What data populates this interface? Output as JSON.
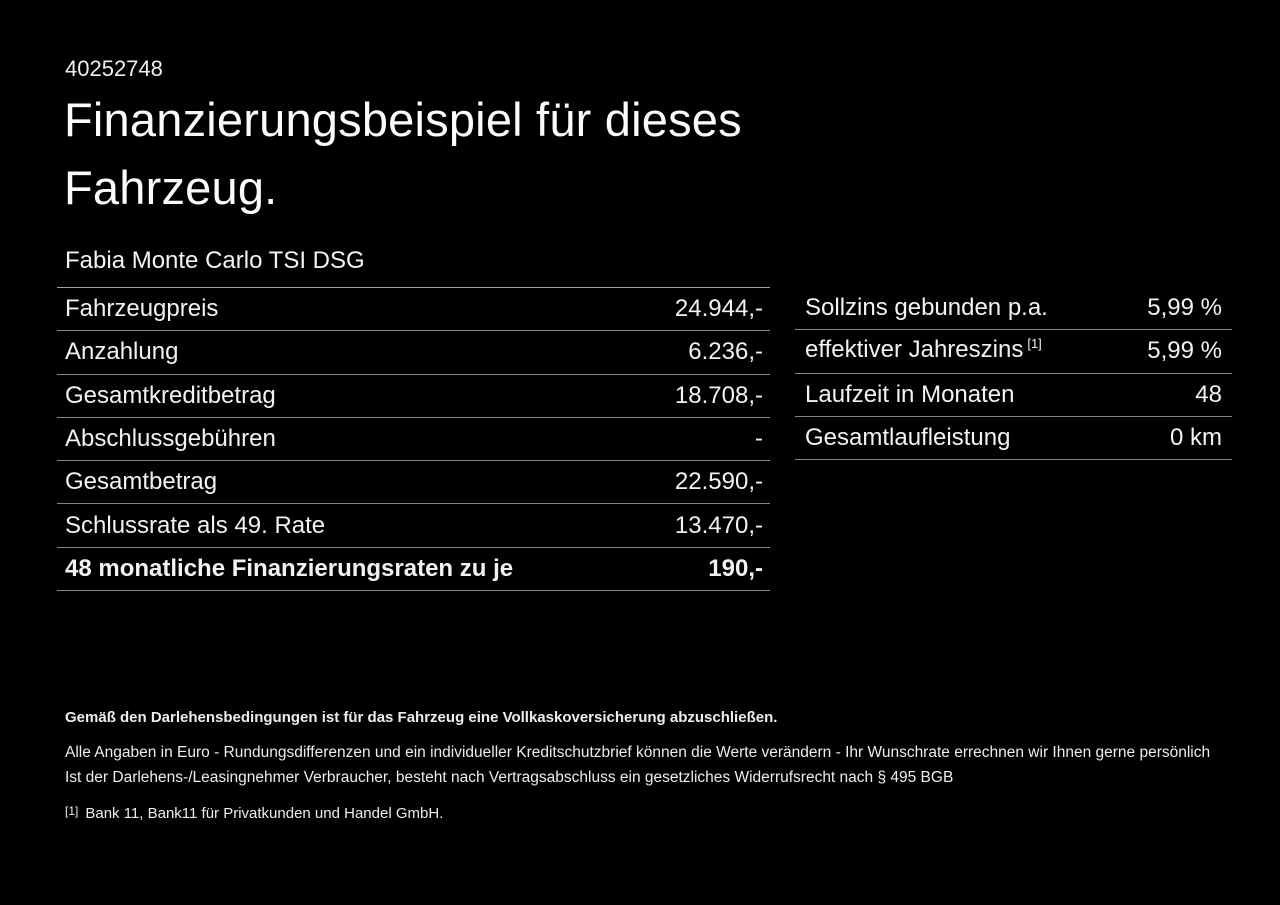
{
  "page": {
    "id_number": "40252748",
    "title_line1": "Finanzierungsbeispiel für dieses",
    "title_line2": "Fahrzeug.",
    "vehicle_name": "Fabia Monte Carlo TSI DSG"
  },
  "finance_table": {
    "rows": [
      {
        "label": "Fahrzeugpreis",
        "value": "24.944,-"
      },
      {
        "label": "Anzahlung",
        "value": "6.236,-"
      },
      {
        "label": "Gesamtkreditbetrag",
        "value": "18.708,-"
      },
      {
        "label": "Abschlussgebühren",
        "value": "-"
      },
      {
        "label": "Gesamtbetrag",
        "value": "22.590,-"
      },
      {
        "label": "Schlussrate als 49. Rate",
        "value": "13.470,-"
      },
      {
        "label": "48 monatliche Finanzierungsraten zu je",
        "value": "190,-"
      }
    ]
  },
  "conditions_table": {
    "rows": [
      {
        "label": "Sollzins gebunden p.a.",
        "value": "5,99 %"
      },
      {
        "label": "effektiver Jahreszins",
        "footnote_marker": "[1]",
        "value": "5,99 %"
      },
      {
        "label": "Laufzeit in Monaten",
        "value": "48"
      },
      {
        "label": "Gesamtlaufleistung",
        "value": "0 km"
      }
    ]
  },
  "footer": {
    "insurance_note": "Gemäß den Darlehensbedingungen ist für das Fahrzeug eine Vollkaskoversicherung abzuschließen.",
    "rounding_note": "Alle Angaben in Euro - Rundungsdifferenzen und ein individueller Kreditschutzbrief können die Werte verändern - Ihr Wunschrate errechnen wir Ihnen gerne persönlich",
    "withdrawal_note": "Ist der Darlehens-/Leasingnehmer Verbraucher, besteht nach Vertragsabschluss ein gesetzliches Widerrufsrecht nach § 495 BGB",
    "footnote_marker": "[1]",
    "footnote_text": "Bank 11, Bank11 für Privatkunden und Handel GmbH."
  },
  "colors": {
    "background": "#000000",
    "text": "#f4f4f4",
    "divider": "#868686"
  }
}
